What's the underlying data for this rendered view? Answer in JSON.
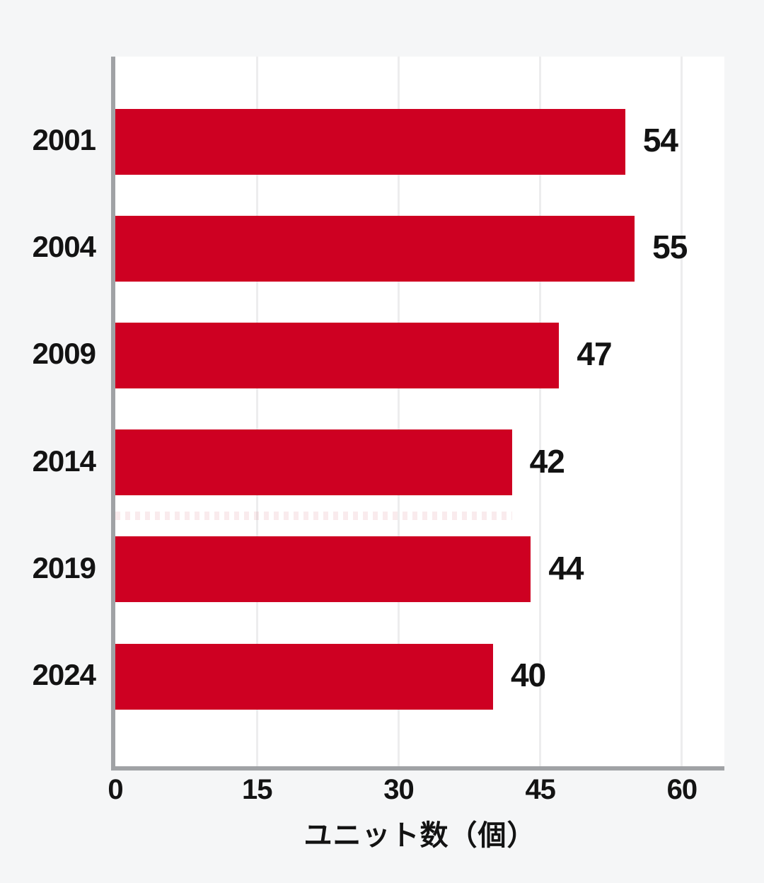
{
  "chart_data": {
    "type": "bar",
    "orientation": "horizontal",
    "title": "",
    "categories": [
      "2001",
      "2004",
      "2009",
      "2014",
      "2019",
      "2024"
    ],
    "values": [
      54,
      55,
      47,
      42,
      44,
      40
    ],
    "value_labels": [
      "54",
      "55",
      "47",
      "42",
      "44",
      "40"
    ],
    "xlabel": "ユニット数（個）",
    "ylabel": "",
    "xticks": [
      "0",
      "15",
      "30",
      "45",
      "60"
    ],
    "xtick_values": [
      0,
      15,
      30,
      45,
      60
    ],
    "xlim": [
      0,
      64.5
    ],
    "grid": true,
    "legend_position": "none",
    "bar_color": "#ce0022"
  },
  "colors": {
    "background": "#f5f6f7",
    "plot_background": "#ffffff",
    "bar": "#ce0022",
    "axis": "#a0a2a5",
    "gridline": "#ededee",
    "text": "#131313"
  }
}
